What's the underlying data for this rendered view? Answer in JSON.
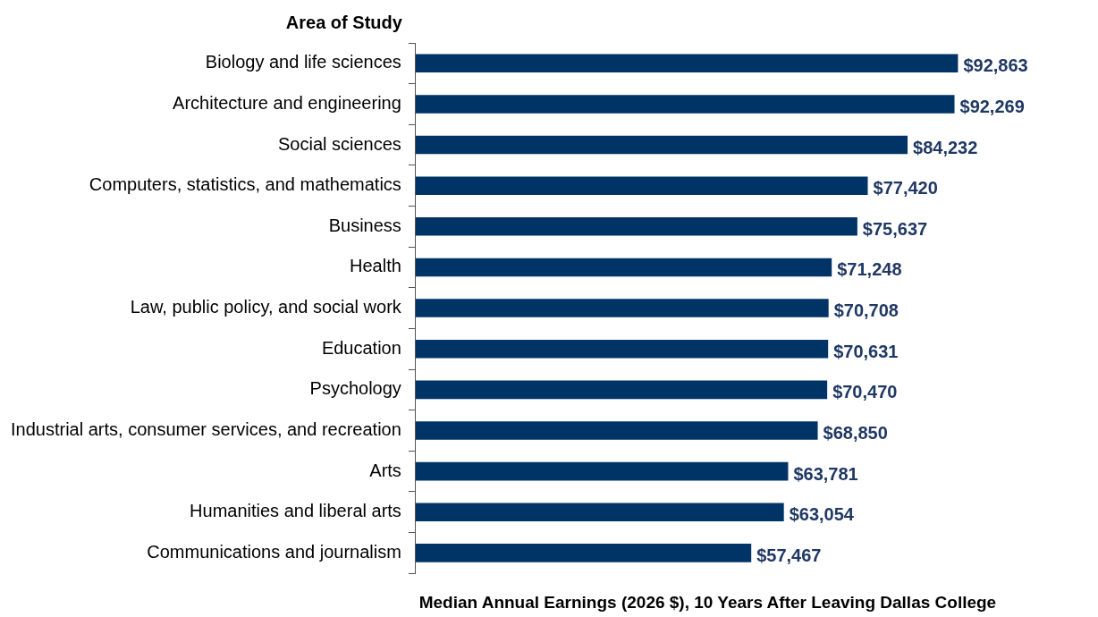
{
  "chart_data": {
    "type": "bar",
    "orientation": "horizontal",
    "ylabel": "Area of Study",
    "xlabel": "Median Annual Earnings (2026 $), 10 Years After Leaving Dallas College",
    "categories": [
      "Biology and life sciences",
      "Architecture and engineering",
      "Social sciences",
      "Computers, statistics, and mathematics",
      "Business",
      "Health",
      "Law, public policy, and social work",
      "Education",
      "Psychology",
      "Industrial arts, consumer services, and recreation",
      "Arts",
      "Humanities and liberal arts",
      "Communications and journalism"
    ],
    "values": [
      92863,
      92269,
      84232,
      77420,
      75637,
      71248,
      70708,
      70631,
      70470,
      68850,
      63781,
      63054,
      57467
    ],
    "value_labels": [
      "$92,863",
      "$92,269",
      "$84,232",
      "$77,420",
      "$75,637",
      "$71,248",
      "$70,708",
      "$70,631",
      "$70,470",
      "$68,850",
      "$63,781",
      "$63,054",
      "$57,467"
    ],
    "color": "#003366",
    "grid": false,
    "legend": false,
    "tick_labels": "y"
  }
}
